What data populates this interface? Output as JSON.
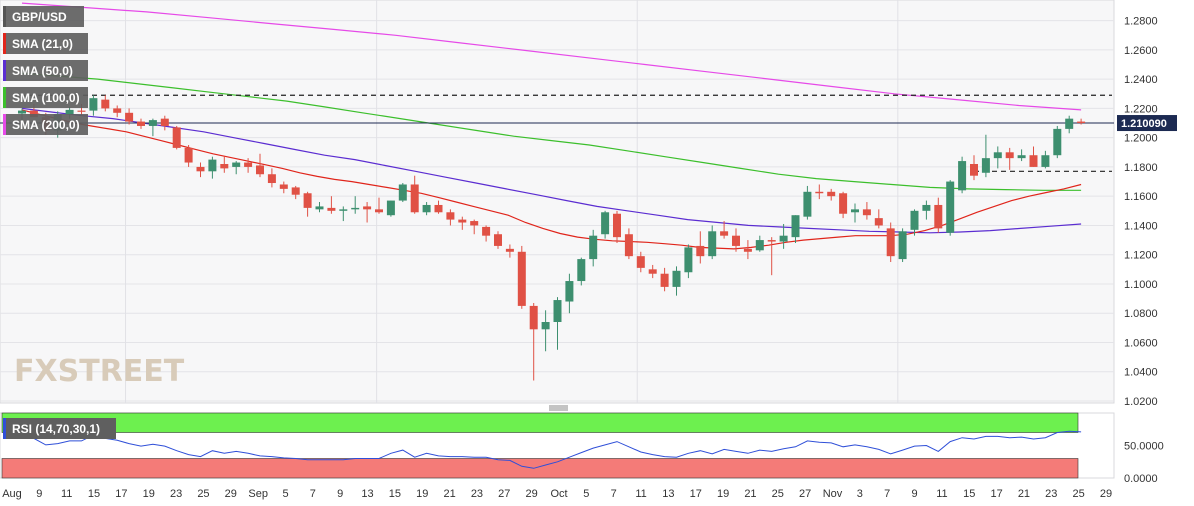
{
  "chart_data": {
    "type": "candlestick",
    "symbol": "GBP/USD",
    "last_price_label": "1.210090",
    "ylim": [
      1.02,
      1.29
    ],
    "y_ticks": [
      "1.2800",
      "1.2600",
      "1.2400",
      "1.2200",
      "1.2000",
      "1.1800",
      "1.1600",
      "1.1400",
      "1.1200",
      "1.1000",
      "1.0800",
      "1.0600",
      "1.0400",
      "1.0200"
    ],
    "resistance_level": 1.229,
    "support_level": 1.177,
    "x_tick_labels": [
      "Aug",
      "9",
      "11",
      "15",
      "17",
      "19",
      "23",
      "25",
      "29",
      "Sep",
      "5",
      "7",
      "9",
      "13",
      "15",
      "19",
      "21",
      "23",
      "27",
      "29",
      "Oct",
      "5",
      "7",
      "11",
      "13",
      "17",
      "19",
      "21",
      "25",
      "27",
      "Nov",
      "3",
      "7",
      "9",
      "11",
      "15",
      "17",
      "21",
      "23",
      "25",
      "29"
    ],
    "colors": {
      "up": "#3d8f6f",
      "down": "#e05145",
      "sma21": "#e0251b",
      "sma50": "#5b2dd1",
      "sma100": "#3cbf2c",
      "sma200": "#e64ae8"
    },
    "candles": [
      [
        1.2165,
        1.22,
        1.212,
        1.2185
      ],
      [
        1.2185,
        1.223,
        1.216,
        1.214
      ],
      [
        1.214,
        1.217,
        1.202,
        1.205
      ],
      [
        1.205,
        1.218,
        1.2,
        1.216
      ],
      [
        1.216,
        1.221,
        1.213,
        1.219
      ],
      [
        1.2185,
        1.223,
        1.215,
        1.218
      ],
      [
        1.2185,
        1.229,
        1.215,
        1.227
      ],
      [
        1.226,
        1.229,
        1.218,
        1.22
      ],
      [
        1.22,
        1.222,
        1.214,
        1.217
      ],
      [
        1.217,
        1.22,
        1.209,
        1.211
      ],
      [
        1.211,
        1.213,
        1.206,
        1.208
      ],
      [
        1.208,
        1.213,
        1.201,
        1.212
      ],
      [
        1.213,
        1.215,
        1.205,
        1.208
      ],
      [
        1.207,
        1.208,
        1.192,
        1.193
      ],
      [
        1.193,
        1.195,
        1.18,
        1.183
      ],
      [
        1.18,
        1.183,
        1.173,
        1.177
      ],
      [
        1.177,
        1.187,
        1.172,
        1.185
      ],
      [
        1.182,
        1.187,
        1.176,
        1.179
      ],
      [
        1.18,
        1.184,
        1.175,
        1.183
      ],
      [
        1.183,
        1.186,
        1.176,
        1.18
      ],
      [
        1.181,
        1.189,
        1.173,
        1.175
      ],
      [
        1.175,
        1.179,
        1.166,
        1.169
      ],
      [
        1.168,
        1.17,
        1.162,
        1.165
      ],
      [
        1.166,
        1.167,
        1.158,
        1.161
      ],
      [
        1.162,
        1.163,
        1.146,
        1.152
      ],
      [
        1.151,
        1.156,
        1.149,
        1.153
      ],
      [
        1.152,
        1.16,
        1.148,
        1.15
      ],
      [
        1.15,
        1.153,
        1.143,
        1.151
      ],
      [
        1.151,
        1.16,
        1.148,
        1.152
      ],
      [
        1.153,
        1.156,
        1.142,
        1.151
      ],
      [
        1.151,
        1.159,
        1.148,
        1.149
      ],
      [
        1.147,
        1.157,
        1.146,
        1.157
      ],
      [
        1.157,
        1.169,
        1.156,
        1.168
      ],
      [
        1.168,
        1.174,
        1.148,
        1.149
      ],
      [
        1.149,
        1.156,
        1.147,
        1.154
      ],
      [
        1.154,
        1.157,
        1.148,
        1.149
      ],
      [
        1.149,
        1.151,
        1.14,
        1.144
      ],
      [
        1.144,
        1.146,
        1.137,
        1.142
      ],
      [
        1.143,
        1.144,
        1.134,
        1.14
      ],
      [
        1.139,
        1.14,
        1.129,
        1.133
      ],
      [
        1.134,
        1.136,
        1.124,
        1.126
      ],
      [
        1.124,
        1.127,
        1.118,
        1.122
      ],
      [
        1.122,
        1.126,
        1.083,
        1.085
      ],
      [
        1.085,
        1.087,
        1.034,
        1.069
      ],
      [
        1.069,
        1.082,
        1.054,
        1.074
      ],
      [
        1.074,
        1.091,
        1.055,
        1.089
      ],
      [
        1.088,
        1.107,
        1.08,
        1.102
      ],
      [
        1.102,
        1.118,
        1.099,
        1.117
      ],
      [
        1.117,
        1.137,
        1.112,
        1.133
      ],
      [
        1.134,
        1.15,
        1.131,
        1.149
      ],
      [
        1.148,
        1.15,
        1.128,
        1.132
      ],
      [
        1.134,
        1.138,
        1.117,
        1.119
      ],
      [
        1.119,
        1.122,
        1.108,
        1.111
      ],
      [
        1.11,
        1.113,
        1.104,
        1.107
      ],
      [
        1.107,
        1.111,
        1.095,
        1.098
      ],
      [
        1.098,
        1.112,
        1.092,
        1.109
      ],
      [
        1.108,
        1.127,
        1.104,
        1.125
      ],
      [
        1.126,
        1.136,
        1.114,
        1.119
      ],
      [
        1.119,
        1.14,
        1.117,
        1.136
      ],
      [
        1.136,
        1.143,
        1.131,
        1.133
      ],
      [
        1.133,
        1.138,
        1.122,
        1.126
      ],
      [
        1.124,
        1.13,
        1.117,
        1.122
      ],
      [
        1.123,
        1.133,
        1.122,
        1.13
      ],
      [
        1.13,
        1.132,
        1.106,
        1.129
      ],
      [
        1.129,
        1.141,
        1.124,
        1.133
      ],
      [
        1.132,
        1.147,
        1.128,
        1.147
      ],
      [
        1.146,
        1.167,
        1.144,
        1.163
      ],
      [
        1.163,
        1.168,
        1.158,
        1.162
      ],
      [
        1.163,
        1.165,
        1.157,
        1.16
      ],
      [
        1.162,
        1.163,
        1.145,
        1.148
      ],
      [
        1.149,
        1.155,
        1.142,
        1.151
      ],
      [
        1.151,
        1.156,
        1.144,
        1.147
      ],
      [
        1.145,
        1.151,
        1.138,
        1.14
      ],
      [
        1.138,
        1.142,
        1.115,
        1.119
      ],
      [
        1.117,
        1.138,
        1.115,
        1.136
      ],
      [
        1.137,
        1.151,
        1.133,
        1.15
      ],
      [
        1.15,
        1.157,
        1.144,
        1.154
      ],
      [
        1.154,
        1.159,
        1.135,
        1.138
      ],
      [
        1.135,
        1.171,
        1.133,
        1.17
      ],
      [
        1.164,
        1.187,
        1.162,
        1.184
      ],
      [
        1.182,
        1.188,
        1.171,
        1.174
      ],
      [
        1.176,
        1.202,
        1.173,
        1.186
      ],
      [
        1.186,
        1.194,
        1.179,
        1.19
      ],
      [
        1.19,
        1.193,
        1.178,
        1.186
      ],
      [
        1.186,
        1.192,
        1.184,
        1.188
      ],
      [
        1.188,
        1.194,
        1.18,
        1.18
      ],
      [
        1.18,
        1.191,
        1.179,
        1.188
      ],
      [
        1.188,
        1.208,
        1.186,
        1.206
      ],
      [
        1.206,
        1.215,
        1.203,
        1.213
      ],
      [
        1.211,
        1.213,
        1.209,
        1.21
      ]
    ],
    "sma21": [
      1.219,
      1.216,
      1.213,
      1.21,
      1.208,
      1.206,
      1.204,
      1.201,
      1.198,
      1.195,
      1.192,
      1.189,
      1.1865,
      1.184,
      1.1815,
      1.179,
      1.176,
      1.1735,
      1.1715,
      1.17,
      1.168,
      1.166,
      1.164,
      1.162,
      1.159,
      1.156,
      1.153,
      1.15,
      1.147,
      1.142,
      1.138,
      1.1345,
      1.132,
      1.1305,
      1.1295,
      1.129,
      1.1285,
      1.1275,
      1.1265,
      1.125,
      1.1245,
      1.124,
      1.125,
      1.1265,
      1.1285,
      1.13,
      1.131,
      1.132,
      1.133,
      1.133,
      1.133,
      1.134,
      1.1365,
      1.14,
      1.1445,
      1.149,
      1.153,
      1.157,
      1.16,
      1.1625,
      1.165,
      1.168
    ],
    "sma50": [
      1.22,
      1.2175,
      1.215,
      1.213,
      1.21,
      1.207,
      1.204,
      1.2,
      1.196,
      1.192,
      1.188,
      1.185,
      1.181,
      1.177,
      1.173,
      1.169,
      1.165,
      1.161,
      1.157,
      1.153,
      1.15,
      1.147,
      1.144,
      1.142,
      1.14,
      1.139,
      1.138,
      1.137,
      1.136,
      1.1355,
      1.135,
      1.1355,
      1.1365,
      1.138,
      1.1395,
      1.141
    ],
    "sma100": [
      1.244,
      1.242,
      1.24,
      1.237,
      1.234,
      1.231,
      1.228,
      1.225,
      1.221,
      1.217,
      1.213,
      1.209,
      1.205,
      1.201,
      1.198,
      1.195,
      1.191,
      1.187,
      1.183,
      1.179,
      1.175,
      1.172,
      1.17,
      1.168,
      1.166,
      1.165,
      1.1645,
      1.164,
      1.164
    ],
    "sma200": [
      1.292,
      1.289,
      1.286,
      1.282,
      1.278,
      1.274,
      1.27,
      1.265,
      1.26,
      1.255,
      1.25,
      1.245,
      1.24,
      1.235,
      1.23,
      1.226,
      1.222,
      1.219
    ],
    "rsi": {
      "label": "RSI (14,70,30,1)",
      "ylim": [
        0,
        100
      ],
      "y_ticks": [
        "50.0000",
        "0.0000"
      ],
      "overbought": 70,
      "oversold": 30,
      "values": [
        63,
        61,
        51,
        53,
        57,
        57,
        66,
        61,
        58,
        53,
        49,
        52,
        49,
        42,
        36,
        33,
        42,
        38,
        41,
        38,
        34,
        33,
        31,
        30,
        28,
        28,
        28,
        28,
        30,
        30,
        30,
        38,
        43,
        32,
        38,
        34,
        33,
        33,
        32,
        32,
        28,
        27,
        18,
        15,
        20,
        25,
        32,
        39,
        46,
        51,
        56,
        48,
        40,
        36,
        33,
        32,
        38,
        42,
        37,
        44,
        41,
        38,
        43,
        41,
        45,
        48,
        57,
        55,
        54,
        48,
        51,
        48,
        44,
        37,
        43,
        49,
        50,
        41,
        56,
        62,
        60,
        64,
        64,
        62,
        63,
        60,
        62,
        70,
        72,
        71
      ]
    },
    "legend": [
      {
        "label": "GBP/USD",
        "color": "#555555"
      },
      {
        "label": "SMA (21,0)",
        "color": "#e0251b"
      },
      {
        "label": "SMA (50,0)",
        "color": "#5b2dd1"
      },
      {
        "label": "SMA (100,0)",
        "color": "#3cbf2c"
      },
      {
        "label": "SMA (200,0)",
        "color": "#e64ae8"
      }
    ],
    "watermark": "FXSTREET"
  }
}
